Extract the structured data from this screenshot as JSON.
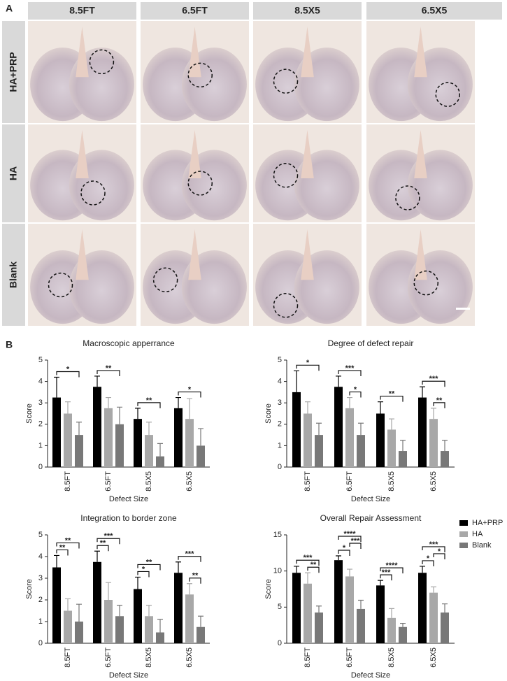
{
  "panel_a": {
    "label": "A",
    "columns": [
      "8.5FT",
      "6.5FT",
      "8.5X5",
      "6.5X5"
    ],
    "rows": [
      "HA+PRP",
      "HA",
      "Blank"
    ]
  },
  "panel_b": {
    "label": "B"
  },
  "chart_data": [
    {
      "type": "bar",
      "title": "Macroscopic apperrance",
      "x_label": "Defect Size",
      "y_label": "Score",
      "categories": [
        "8.5FT",
        "6.5FT",
        "8.5X5",
        "6.5X5"
      ],
      "ylim": [
        0,
        5
      ],
      "yticks": [
        0,
        1,
        2,
        3,
        4,
        5
      ],
      "series": [
        {
          "color": "#000000",
          "values": [
            3.25,
            3.75,
            2.25,
            2.75
          ],
          "errors": [
            0.95,
            0.5,
            0.5,
            0.5
          ]
        },
        {
          "color": "#a8a8a8",
          "values": [
            2.5,
            2.75,
            1.5,
            2.25
          ],
          "errors": [
            0.55,
            0.5,
            0.6,
            0.95
          ]
        },
        {
          "color": "#787878",
          "values": [
            1.5,
            2.0,
            0.5,
            1.0
          ],
          "errors": [
            0.6,
            0.8,
            0.6,
            0.8
          ]
        }
      ],
      "significance": [
        {
          "category": 0,
          "from": 0,
          "to": 2,
          "label": "*"
        },
        {
          "category": 1,
          "from": 0,
          "to": 2,
          "label": "**"
        },
        {
          "category": 2,
          "from": 0,
          "to": 2,
          "label": "**"
        },
        {
          "category": 3,
          "from": 0,
          "to": 2,
          "label": "*"
        }
      ]
    },
    {
      "type": "bar",
      "title": "Degree of defect repair",
      "x_label": "Defect Size",
      "y_label": "Score",
      "categories": [
        "8.5FT",
        "6.5FT",
        "8.5X5",
        "6.5X5"
      ],
      "ylim": [
        0,
        5
      ],
      "yticks": [
        0,
        1,
        2,
        3,
        4,
        5
      ],
      "series": [
        {
          "color": "#000000",
          "values": [
            3.5,
            3.75,
            2.5,
            3.25
          ],
          "errors": [
            1.0,
            0.5,
            0.55,
            0.5
          ]
        },
        {
          "color": "#a8a8a8",
          "values": [
            2.5,
            2.75,
            1.75,
            2.25
          ],
          "errors": [
            0.55,
            0.5,
            0.5,
            0.5
          ]
        },
        {
          "color": "#787878",
          "values": [
            1.5,
            1.5,
            0.75,
            0.75
          ],
          "errors": [
            0.55,
            0.55,
            0.5,
            0.5
          ]
        }
      ],
      "significance": [
        {
          "category": 0,
          "from": 0,
          "to": 2,
          "label": "*"
        },
        {
          "category": 1,
          "from": 0,
          "to": 2,
          "label": "***"
        },
        {
          "category": 1,
          "from": 1,
          "to": 2,
          "label": "*"
        },
        {
          "category": 2,
          "from": 0,
          "to": 2,
          "label": "**"
        },
        {
          "category": 3,
          "from": 0,
          "to": 2,
          "label": "***"
        },
        {
          "category": 3,
          "from": 1,
          "to": 2,
          "label": "**"
        }
      ]
    },
    {
      "type": "bar",
      "title": "Integration to border zone",
      "x_label": "Defect Size",
      "y_label": "Score",
      "categories": [
        "8.5FT",
        "6.5FT",
        "8.5X5",
        "6.5X5"
      ],
      "ylim": [
        0,
        5
      ],
      "yticks": [
        0,
        1,
        2,
        3,
        4,
        5
      ],
      "series": [
        {
          "color": "#000000",
          "values": [
            3.5,
            3.75,
            2.5,
            3.25
          ],
          "errors": [
            0.55,
            0.5,
            0.55,
            0.5
          ]
        },
        {
          "color": "#a8a8a8",
          "values": [
            1.5,
            2.0,
            1.25,
            2.25
          ],
          "errors": [
            0.55,
            0.8,
            0.5,
            0.5
          ]
        },
        {
          "color": "#787878",
          "values": [
            1.0,
            1.25,
            0.5,
            0.75
          ],
          "errors": [
            0.8,
            0.5,
            0.6,
            0.5
          ]
        }
      ],
      "significance": [
        {
          "category": 0,
          "from": 0,
          "to": 1,
          "label": "**"
        },
        {
          "category": 0,
          "from": 0,
          "to": 2,
          "label": "**"
        },
        {
          "category": 1,
          "from": 0,
          "to": 1,
          "label": "**"
        },
        {
          "category": 1,
          "from": 0,
          "to": 2,
          "label": "***"
        },
        {
          "category": 2,
          "from": 0,
          "to": 1,
          "label": "*"
        },
        {
          "category": 2,
          "from": 0,
          "to": 2,
          "label": "**"
        },
        {
          "category": 3,
          "from": 0,
          "to": 2,
          "label": "***"
        },
        {
          "category": 3,
          "from": 1,
          "to": 2,
          "label": "**"
        }
      ]
    },
    {
      "type": "bar",
      "title": "Overall Repair Assessment",
      "x_label": "Defect Size",
      "y_label": "Score",
      "categories": [
        "8.5FT",
        "6.5FT",
        "8.5X5",
        "6.5X5"
      ],
      "ylim": [
        0,
        15
      ],
      "yticks": [
        0,
        5,
        10,
        15
      ],
      "series": [
        {
          "name": "HA+PRP",
          "color": "#000000",
          "values": [
            9.75,
            11.5,
            8.0,
            9.75
          ],
          "errors": [
            0.9,
            0.6,
            0.7,
            0.9
          ]
        },
        {
          "name": "HA",
          "color": "#a8a8a8",
          "values": [
            8.25,
            9.25,
            3.5,
            7.0
          ],
          "errors": [
            1.5,
            1.0,
            1.3,
            0.8
          ]
        },
        {
          "name": "Blank",
          "color": "#787878",
          "values": [
            4.25,
            4.75,
            2.25,
            4.25
          ],
          "errors": [
            0.9,
            1.2,
            0.5,
            1.2
          ]
        }
      ],
      "significance": [
        {
          "category": 0,
          "from": 0,
          "to": 2,
          "label": "***"
        },
        {
          "category": 0,
          "from": 1,
          "to": 2,
          "label": "**"
        },
        {
          "category": 1,
          "from": 0,
          "to": 1,
          "label": "*"
        },
        {
          "category": 1,
          "from": 0,
          "to": 2,
          "label": "****"
        },
        {
          "category": 1,
          "from": 1,
          "to": 2,
          "label": "***"
        },
        {
          "category": 2,
          "from": 0,
          "to": 1,
          "label": "***"
        },
        {
          "category": 2,
          "from": 0,
          "to": 2,
          "label": "****"
        },
        {
          "category": 3,
          "from": 0,
          "to": 1,
          "label": "*"
        },
        {
          "category": 3,
          "from": 0,
          "to": 2,
          "label": "***"
        },
        {
          "category": 3,
          "from": 1,
          "to": 2,
          "label": "*"
        }
      ]
    }
  ]
}
